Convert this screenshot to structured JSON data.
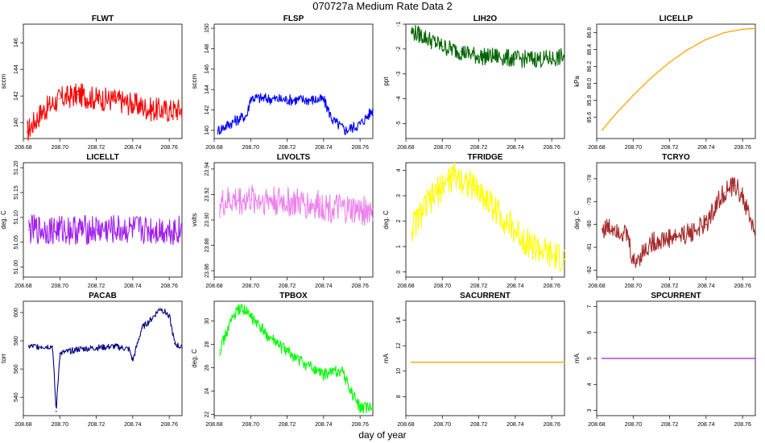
{
  "figure": {
    "title": "070727a   Medium Rate Data 2",
    "xlabel": "day of year"
  },
  "chart_data": [
    {
      "name": "FLWT",
      "type": "line",
      "title": "FLWT",
      "ylabel": "sccm",
      "color": "#ff0000",
      "xlim": [
        208.68,
        208.767
      ],
      "ylim": [
        138.8,
        147.4
      ],
      "xticks": [
        "208.68",
        "208.70",
        "208.72",
        "208.74",
        "208.76"
      ],
      "yticks": [
        "140",
        "142",
        "144",
        "146"
      ],
      "x": [
        208.682,
        208.69,
        208.7,
        208.71,
        208.72,
        208.73,
        208.74,
        208.75,
        208.76,
        208.767
      ],
      "y": [
        139.3,
        140.8,
        141.8,
        142.1,
        141.8,
        141.7,
        141.4,
        141.0,
        140.9,
        141.0
      ]
    },
    {
      "name": "FLSP",
      "type": "line",
      "title": "FLSP",
      "ylabel": "sccm",
      "color": "#0000ff",
      "xlim": [
        208.68,
        208.767
      ],
      "ylim": [
        139.2,
        150.4
      ],
      "xticks": [
        "208.68",
        "208.70",
        "208.72",
        "208.74",
        "208.76"
      ],
      "yticks": [
        "140",
        "142",
        "144",
        "146",
        "148",
        "150"
      ],
      "x": [
        208.682,
        208.69,
        208.698,
        208.7,
        208.72,
        208.74,
        208.745,
        208.752,
        208.76,
        208.767
      ],
      "y": [
        140.0,
        140.8,
        141.5,
        143.2,
        143.0,
        143.0,
        141.0,
        140.0,
        140.6,
        142.0
      ]
    },
    {
      "name": "LIH2O",
      "type": "line",
      "title": "LIH2O",
      "ylabel": "ppt",
      "color": "#006400",
      "xlim": [
        208.68,
        208.767
      ],
      "ylim": [
        -5.6,
        -1.0
      ],
      "xticks": [
        "208.68",
        "208.70",
        "208.72",
        "208.74",
        "208.76"
      ],
      "yticks": [
        "-1",
        "-2",
        "-3",
        "-4",
        "-5"
      ],
      "x": [
        208.683,
        208.69,
        208.7,
        208.71,
        208.72,
        208.73,
        208.74,
        208.75,
        208.76,
        208.767
      ],
      "y": [
        -1.3,
        -1.5,
        -1.9,
        -2.1,
        -2.3,
        -2.3,
        -2.4,
        -2.4,
        -2.4,
        -2.3
      ]
    },
    {
      "name": "LICELLP",
      "type": "line",
      "title": "LICELLP",
      "ylabel": "kPa",
      "color": "#ffa500",
      "xlim": [
        208.68,
        208.767
      ],
      "ylim": [
        85.35,
        86.7
      ],
      "xticks": [
        "208.68",
        "208.70",
        "208.72",
        "208.74",
        "208.76"
      ],
      "yticks": [
        "85.6",
        "85.8",
        "86.0",
        "86.2",
        "86.4",
        "86.6"
      ],
      "x": [
        208.683,
        208.69,
        208.7,
        208.71,
        208.72,
        208.73,
        208.74,
        208.75,
        208.76,
        208.767
      ],
      "y": [
        85.45,
        85.63,
        85.86,
        86.07,
        86.25,
        86.4,
        86.52,
        86.6,
        86.64,
        86.65
      ]
    },
    {
      "name": "LICELLT",
      "type": "line",
      "title": "LICELLT",
      "ylabel": "deg. C",
      "color": "#a020f0",
      "xlim": [
        208.68,
        208.767
      ],
      "ylim": [
        50.98,
        51.21
      ],
      "xticks": [
        "208.68",
        "208.70",
        "208.72",
        "208.74",
        "208.76"
      ],
      "yticks": [
        "51.00",
        "51.05",
        "51.10",
        "51.15",
        "51.20"
      ],
      "x": [
        208.683,
        208.7,
        208.72,
        208.74,
        208.767
      ],
      "y": [
        51.075,
        51.075,
        51.075,
        51.075,
        51.075
      ]
    },
    {
      "name": "LIVOLTS",
      "type": "line",
      "title": "LIVOLTS",
      "ylabel": "volts",
      "color": "#ee82ee",
      "xlim": [
        208.68,
        208.767
      ],
      "ylim": [
        23.855,
        23.945
      ],
      "xticks": [
        "208.68",
        "208.70",
        "208.72",
        "208.74",
        "208.76"
      ],
      "yticks": [
        "23.86",
        "23.88",
        "23.90",
        "23.92",
        "23.94"
      ],
      "x": [
        208.683,
        208.69,
        208.7,
        208.71,
        208.72,
        208.73,
        208.74,
        208.75,
        208.76,
        208.767
      ],
      "y": [
        23.912,
        23.915,
        23.916,
        23.916,
        23.914,
        23.912,
        23.911,
        23.908,
        23.907,
        23.908
      ]
    },
    {
      "name": "TFRIDGE",
      "type": "line",
      "title": "TFRIDGE",
      "ylabel": "deg. C",
      "color": "#ffff00",
      "xlim": [
        208.68,
        208.767
      ],
      "ylim": [
        -0.2,
        4.3
      ],
      "xticks": [
        "208.68",
        "208.70",
        "208.72",
        "208.74",
        "208.76"
      ],
      "yticks": [
        "0",
        "1",
        "2",
        "3",
        "4"
      ],
      "x": [
        208.683,
        208.69,
        208.7,
        208.707,
        208.71,
        208.72,
        208.73,
        208.74,
        208.75,
        208.76,
        208.767
      ],
      "y": [
        1.7,
        2.5,
        3.4,
        3.8,
        3.7,
        3.2,
        2.4,
        1.6,
        1.0,
        0.6,
        0.5
      ]
    },
    {
      "name": "TCRYO",
      "type": "line",
      "title": "TCRYO",
      "ylabel": "deg. C",
      "color": "#a52a2a",
      "xlim": [
        208.68,
        208.767
      ],
      "ylim": [
        -82.3,
        -77.3
      ],
      "xticks": [
        "208.68",
        "208.70",
        "208.72",
        "208.74",
        "208.76"
      ],
      "yticks": [
        "-78",
        "-79",
        "-80",
        "-81",
        "-82"
      ],
      "x": [
        208.683,
        208.69,
        208.697,
        208.7,
        208.71,
        208.72,
        208.73,
        208.74,
        208.745,
        208.75,
        208.756,
        208.76,
        208.767
      ],
      "y": [
        -80.2,
        -80.1,
        -80.5,
        -81.7,
        -80.8,
        -80.6,
        -80.4,
        -80.0,
        -79.2,
        -78.6,
        -78.3,
        -78.8,
        -80.4
      ]
    },
    {
      "name": "PACAB",
      "type": "line",
      "title": "PACAB",
      "ylabel": "torr",
      "color": "#000080",
      "xlim": [
        208.68,
        208.767
      ],
      "ylim": [
        527,
        608
      ],
      "xticks": [
        "208.68",
        "208.70",
        "208.72",
        "208.74",
        "208.76"
      ],
      "yticks": [
        "540",
        "560",
        "580",
        "600"
      ],
      "x": [
        208.683,
        208.69,
        208.696,
        208.698,
        208.7,
        208.71,
        208.72,
        208.73,
        208.738,
        208.74,
        208.745,
        208.75,
        208.755,
        208.76,
        208.763,
        208.767
      ],
      "y": [
        576,
        576,
        576,
        530,
        571,
        574,
        575,
        576,
        574,
        566,
        589,
        595,
        603,
        598,
        578,
        575
      ]
    },
    {
      "name": "TPBOX",
      "type": "line",
      "title": "TPBOX",
      "ylabel": "deg. C",
      "color": "#00ff00",
      "xlim": [
        208.68,
        208.767
      ],
      "ylim": [
        21.9,
        31.7
      ],
      "xticks": [
        "208.68",
        "208.70",
        "208.72",
        "208.74",
        "208.76"
      ],
      "yticks": [
        "22",
        "24",
        "26",
        "28",
        "30"
      ],
      "x": [
        208.683,
        208.69,
        208.695,
        208.7,
        208.71,
        208.72,
        208.73,
        208.74,
        208.745,
        208.75,
        208.755,
        208.76,
        208.767
      ],
      "y": [
        27.5,
        30.3,
        31.2,
        30.4,
        28.6,
        27.4,
        26.3,
        25.4,
        25.7,
        25.8,
        24.0,
        22.6,
        22.5
      ]
    },
    {
      "name": "SACURRENT",
      "type": "line",
      "title": "SACURRENT",
      "ylabel": "mA",
      "color": "#ffa500",
      "xlim": [
        208.68,
        208.767
      ],
      "ylim": [
        6.5,
        15.5
      ],
      "xticks": [
        "208.68",
        "208.70",
        "208.72",
        "208.74",
        "208.76"
      ],
      "yticks": [
        "8",
        "10",
        "12",
        "14"
      ],
      "x": [
        208.683,
        208.767
      ],
      "y": [
        10.7,
        10.7
      ]
    },
    {
      "name": "SPCURRENT",
      "type": "line",
      "title": "SPCURRENT",
      "ylabel": "mA",
      "color": "#a020f0",
      "xlim": [
        208.68,
        208.767
      ],
      "ylim": [
        2.8,
        7.2
      ],
      "xticks": [
        "208.68",
        "208.70",
        "208.72",
        "208.74",
        "208.76"
      ],
      "yticks": [
        "3",
        "4",
        "5",
        "6",
        "7"
      ],
      "x": [
        208.683,
        208.767
      ],
      "y": [
        5.0,
        5.0
      ]
    }
  ]
}
